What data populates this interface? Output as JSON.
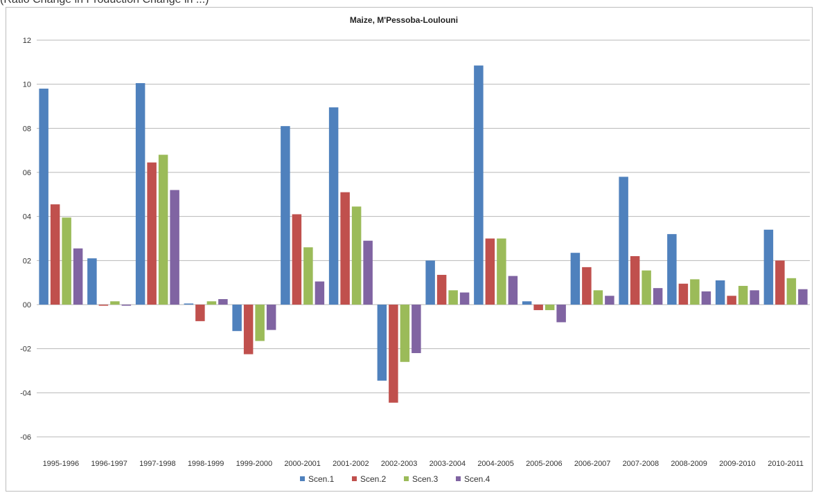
{
  "caption": "(Ratio Change in Production Change in ...)",
  "chart_data": {
    "type": "bar",
    "title": "Maize, M'Pessoba-Loulouni",
    "categories": [
      "1995-1996",
      "1996-1997",
      "1997-1998",
      "1998-1999",
      "1999-2000",
      "2000-2001",
      "2001-2002",
      "2002-2003",
      "2003-2004",
      "2004-2005",
      "2005-2006",
      "2006-2007",
      "2007-2008",
      "2008-2009",
      "2009-2010",
      "2010-2011"
    ],
    "ylim": [
      -0.6,
      1.2
    ],
    "yticks": [
      12,
      10,
      8,
      6,
      4,
      2,
      0,
      -2,
      -4,
      -6
    ],
    "ytick_labels": [
      "12",
      "10",
      "08",
      "06",
      "04",
      "02",
      "00",
      "-02",
      "-04",
      "-06"
    ],
    "grid": true,
    "legend_position": "bottom",
    "series": [
      {
        "name": "Scen.1",
        "color": "#4f81bd",
        "values": [
          0.98,
          0.21,
          1.005,
          0.005,
          -0.12,
          0.81,
          0.895,
          -0.345,
          0.2,
          1.085,
          0.015,
          0.235,
          0.58,
          0.32,
          0.11,
          0.34
        ]
      },
      {
        "name": "Scen.2",
        "color": "#c0504d",
        "values": [
          0.455,
          -0.005,
          0.645,
          -0.075,
          -0.225,
          0.41,
          0.51,
          -0.445,
          0.135,
          0.3,
          -0.025,
          0.17,
          0.22,
          0.095,
          0.04,
          0.2
        ]
      },
      {
        "name": "Scen.3",
        "color": "#9bbb59",
        "values": [
          0.395,
          0.015,
          0.68,
          0.015,
          -0.165,
          0.26,
          0.445,
          -0.26,
          0.065,
          0.3,
          -0.025,
          0.065,
          0.155,
          0.115,
          0.085,
          0.12
        ]
      },
      {
        "name": "Scen.4",
        "color": "#8064a2",
        "values": [
          0.255,
          -0.005,
          0.52,
          0.025,
          -0.115,
          0.105,
          0.29,
          -0.22,
          0.055,
          0.13,
          -0.08,
          0.04,
          0.075,
          0.06,
          0.065,
          0.07
        ]
      }
    ]
  }
}
